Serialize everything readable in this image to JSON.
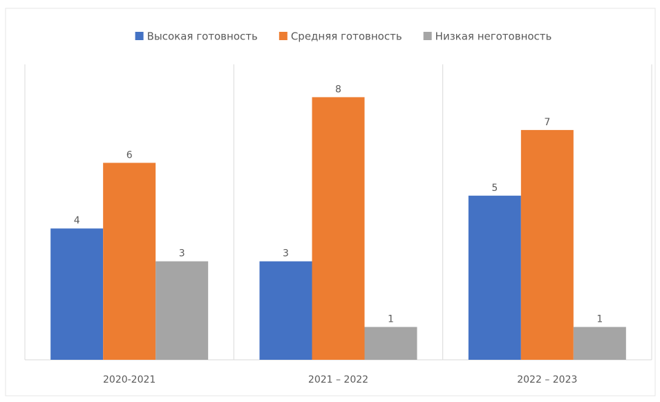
{
  "chart_data": {
    "type": "bar",
    "categories": [
      "2020-2021",
      "2021 – 2022",
      "2022 – 2023"
    ],
    "series": [
      {
        "name": "Высокая готовность",
        "color": "#4472c4",
        "values": [
          4,
          3,
          5
        ]
      },
      {
        "name": "Средняя готовность",
        "color": "#ed7d31",
        "values": [
          6,
          8,
          7
        ]
      },
      {
        "name": "Низкая неготовность",
        "color": "#a5a5a5",
        "values": [
          3,
          1,
          1
        ]
      }
    ],
    "ylim": [
      0,
      9
    ],
    "legend": "top",
    "data_labels": true
  }
}
